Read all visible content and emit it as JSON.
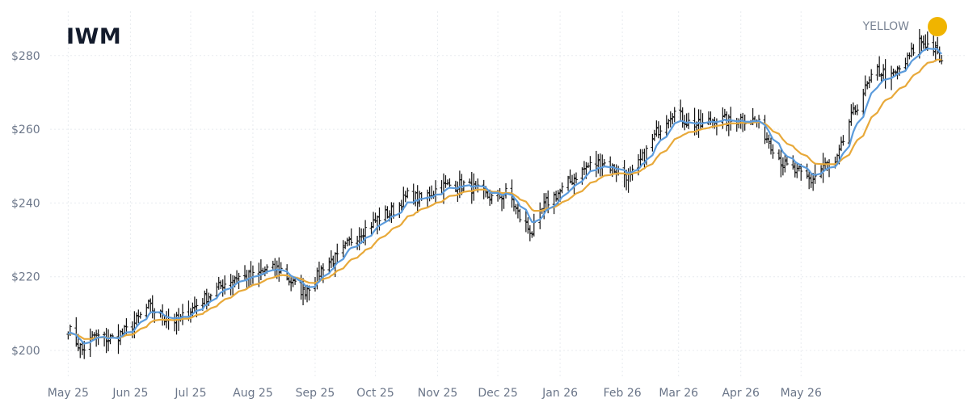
{
  "header": {
    "ticker": "IWM"
  },
  "legend": {
    "label": "YELLOW",
    "dot_color": "#f0b400"
  },
  "colors": {
    "candle": "#111111",
    "fast_ma": "#5b9bdc",
    "slow_ma": "#e8a93a",
    "grid": "#e8ebef"
  },
  "chart_data": {
    "type": "ohlc",
    "title": "IWM",
    "ylim": [
      193,
      292
    ],
    "yticks": [
      200,
      220,
      240,
      260,
      280
    ],
    "ytick_labels": [
      "$200",
      "$220",
      "$240",
      "$260",
      "$280"
    ],
    "x_range": [
      "2025-04-22",
      "2026-07-22"
    ],
    "xticks": [
      "2025-05-01",
      "2025-06-01",
      "2025-07-01",
      "2025-08-01",
      "2025-09-01",
      "2025-10-01",
      "2025-11-01",
      "2025-12-01",
      "2026-01-01",
      "2026-02-01",
      "2026-03-01",
      "2026-04-01",
      "2026-05-01"
    ],
    "xtick_labels": [
      "May 25",
      "Jun 25",
      "Jul 25",
      "Aug 25",
      "Sep 25",
      "Oct 25",
      "Nov 25",
      "Dec 25",
      "Jan 26",
      "Feb 26",
      "Mar 26",
      "Apr 26",
      "May 26"
    ],
    "grid": true,
    "legend_position": "top-right",
    "close_anchors": [
      [
        "2025-05-01",
        206
      ],
      [
        "2025-05-08",
        200
      ],
      [
        "2025-05-14",
        204
      ],
      [
        "2025-05-22",
        203
      ],
      [
        "2025-06-01",
        206
      ],
      [
        "2025-06-10",
        212
      ],
      [
        "2025-06-17",
        209
      ],
      [
        "2025-06-25",
        208
      ],
      [
        "2025-07-03",
        212
      ],
      [
        "2025-07-10",
        215
      ],
      [
        "2025-07-17",
        218
      ],
      [
        "2025-07-24",
        220
      ],
      [
        "2025-08-01",
        220
      ],
      [
        "2025-08-08",
        222
      ],
      [
        "2025-08-15",
        222
      ],
      [
        "2025-08-21",
        218
      ],
      [
        "2025-08-26",
        216
      ],
      [
        "2025-09-01",
        219
      ],
      [
        "2025-09-06",
        224
      ],
      [
        "2025-09-12",
        225
      ],
      [
        "2025-09-19",
        230
      ],
      [
        "2025-09-26",
        233
      ],
      [
        "2025-10-03",
        236
      ],
      [
        "2025-10-10",
        238
      ],
      [
        "2025-10-17",
        242
      ],
      [
        "2025-10-24",
        241
      ],
      [
        "2025-11-01",
        244
      ],
      [
        "2025-11-08",
        245
      ],
      [
        "2025-11-15",
        245
      ],
      [
        "2025-11-22",
        243
      ],
      [
        "2025-11-29",
        241
      ],
      [
        "2025-12-06",
        243
      ],
      [
        "2025-12-12",
        236
      ],
      [
        "2025-12-18",
        232
      ],
      [
        "2025-12-25",
        240
      ],
      [
        "2026-01-01",
        243
      ],
      [
        "2026-01-08",
        247
      ],
      [
        "2026-01-15",
        250
      ],
      [
        "2026-01-22",
        251
      ],
      [
        "2026-01-29",
        249
      ],
      [
        "2026-02-05",
        247
      ],
      [
        "2026-02-12",
        253
      ],
      [
        "2026-02-19",
        260
      ],
      [
        "2026-02-26",
        265
      ],
      [
        "2026-03-05",
        262
      ],
      [
        "2026-03-12",
        261
      ],
      [
        "2026-03-19",
        263
      ],
      [
        "2026-03-26",
        262
      ],
      [
        "2026-04-02",
        263
      ],
      [
        "2026-04-09",
        262
      ],
      [
        "2026-04-16",
        256
      ],
      [
        "2026-04-23",
        250
      ],
      [
        "2026-04-30",
        248
      ],
      [
        "2026-05-06",
        246
      ],
      [
        "2026-05-12",
        250
      ],
      [
        "2026-05-18",
        250
      ],
      [
        "2026-05-25",
        262
      ],
      [
        "2026-06-01",
        270
      ],
      [
        "2026-06-08",
        276
      ],
      [
        "2026-06-15",
        274
      ],
      [
        "2026-06-22",
        278
      ],
      [
        "2026-06-29",
        284
      ],
      [
        "2026-07-06",
        282
      ],
      [
        "2026-07-12",
        276
      ]
    ]
  }
}
